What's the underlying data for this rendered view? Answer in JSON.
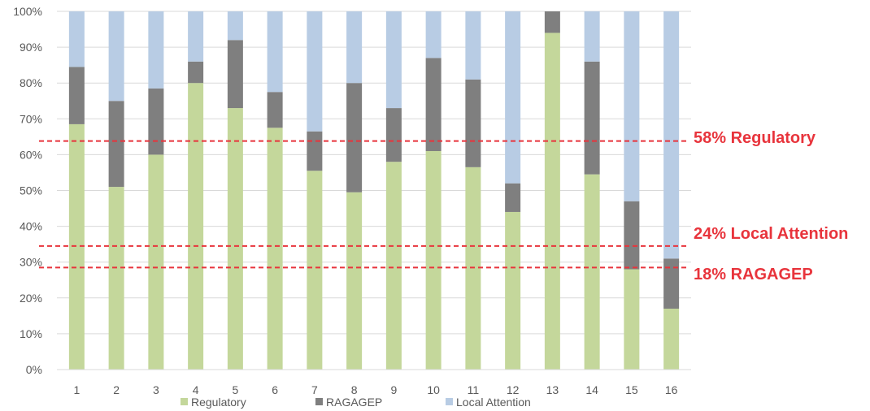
{
  "chart_data": {
    "type": "bar",
    "stacked": true,
    "normalized": true,
    "categories": [
      "1",
      "2",
      "3",
      "4",
      "5",
      "6",
      "7",
      "8",
      "9",
      "10",
      "11",
      "12",
      "13",
      "14",
      "15",
      "16"
    ],
    "series": [
      {
        "name": "Regulatory",
        "color": "#c4d79b",
        "values": [
          68.5,
          51,
          60,
          80,
          73,
          67.5,
          55.5,
          49.5,
          58,
          61,
          56.5,
          44,
          94,
          54.5,
          28,
          17
        ]
      },
      {
        "name": "RAGAGEP",
        "color": "#7f7f7f",
        "values": [
          16,
          24,
          18.5,
          6,
          19,
          10,
          11,
          30.5,
          15,
          26,
          24.5,
          8,
          6,
          31.5,
          19,
          14
        ]
      },
      {
        "name": "Local Attention",
        "color": "#b8cce4",
        "values": [
          15.5,
          25,
          21.5,
          14,
          8,
          22.5,
          33.5,
          20,
          27,
          13,
          19,
          48,
          0,
          14,
          53,
          69
        ]
      }
    ],
    "y_ticks": [
      "0%",
      "10%",
      "20%",
      "30%",
      "40%",
      "50%",
      "60%",
      "70%",
      "80%",
      "90%",
      "100%"
    ],
    "ylim": [
      0,
      100
    ],
    "grid": true,
    "legend_position": "bottom",
    "reference_lines": [
      {
        "label": "58% Regulatory",
        "value": 63.8
      },
      {
        "label": "24% Local Attention",
        "value": 34.5
      },
      {
        "label": "18% RAGAGEP",
        "value": 28.5
      }
    ],
    "reference_color": "#e8343c"
  }
}
